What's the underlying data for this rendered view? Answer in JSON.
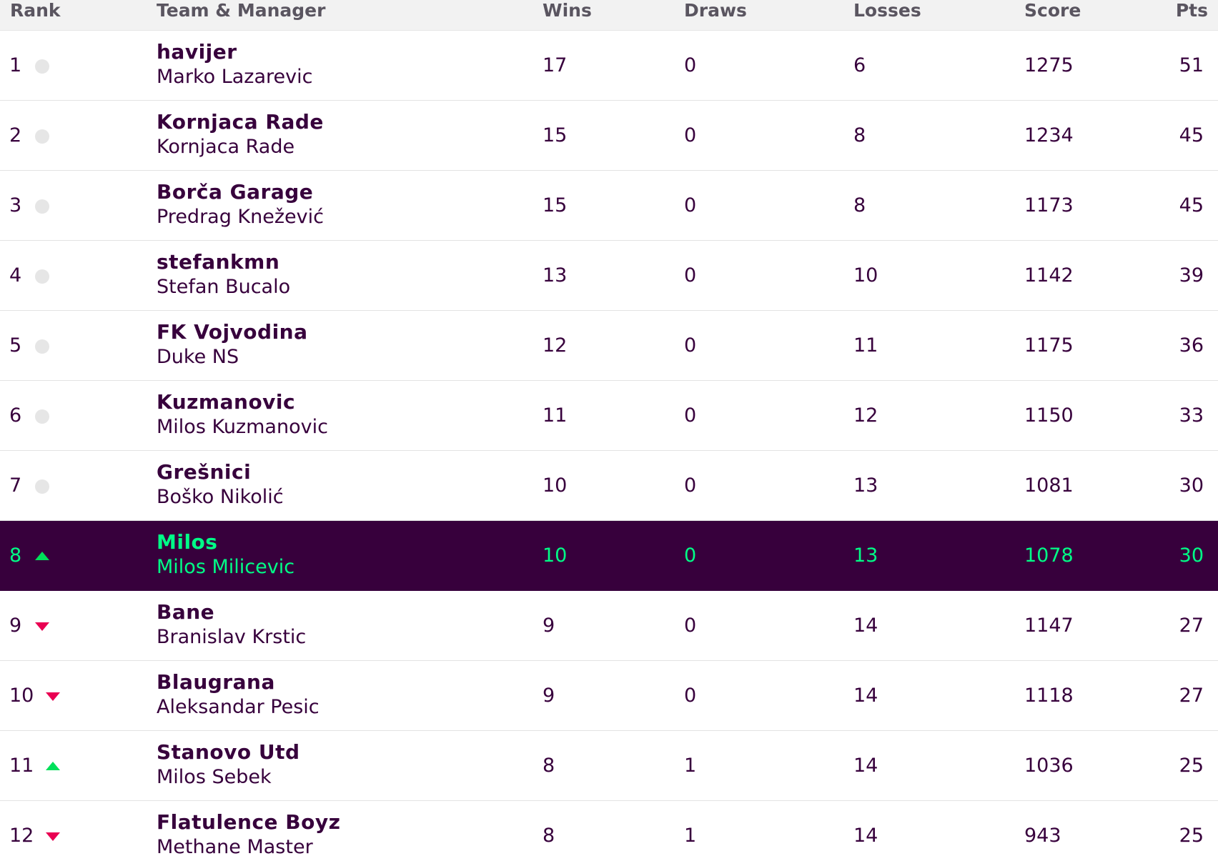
{
  "columns": {
    "rank": "Rank",
    "team_manager": "Team & Manager",
    "wins": "Wins",
    "draws": "Draws",
    "losses": "Losses",
    "score": "Score",
    "pts": "Pts"
  },
  "colors": {
    "text": "#37003c",
    "header_bg": "#f2f2f2",
    "header_text": "#5a5560",
    "highlight_bg": "#37003c",
    "highlight_text": "#00ff87",
    "up": "#00e05a",
    "down": "#e90052",
    "same": "#e6e6e6"
  },
  "rows": [
    {
      "rank": "1",
      "movement": "same",
      "team": "havijer",
      "manager": "Marko Lazarevic",
      "wins": "17",
      "draws": "0",
      "losses": "6",
      "score": "1275",
      "pts": "51",
      "highlight": false
    },
    {
      "rank": "2",
      "movement": "same",
      "team": "Kornjaca Rade",
      "manager": "Kornjaca Rade",
      "wins": "15",
      "draws": "0",
      "losses": "8",
      "score": "1234",
      "pts": "45",
      "highlight": false
    },
    {
      "rank": "3",
      "movement": "same",
      "team": "Borča Garage",
      "manager": "Predrag Knežević",
      "wins": "15",
      "draws": "0",
      "losses": "8",
      "score": "1173",
      "pts": "45",
      "highlight": false
    },
    {
      "rank": "4",
      "movement": "same",
      "team": "stefankmn",
      "manager": "Stefan Bucalo",
      "wins": "13",
      "draws": "0",
      "losses": "10",
      "score": "1142",
      "pts": "39",
      "highlight": false
    },
    {
      "rank": "5",
      "movement": "same",
      "team": "FK Vojvodina",
      "manager": "Duke NS",
      "wins": "12",
      "draws": "0",
      "losses": "11",
      "score": "1175",
      "pts": "36",
      "highlight": false
    },
    {
      "rank": "6",
      "movement": "same",
      "team": "Kuzmanovic",
      "manager": "Milos Kuzmanovic",
      "wins": "11",
      "draws": "0",
      "losses": "12",
      "score": "1150",
      "pts": "33",
      "highlight": false
    },
    {
      "rank": "7",
      "movement": "same",
      "team": "Grešnici",
      "manager": "Boško Nikolić",
      "wins": "10",
      "draws": "0",
      "losses": "13",
      "score": "1081",
      "pts": "30",
      "highlight": false
    },
    {
      "rank": "8",
      "movement": "up",
      "team": "Milos",
      "manager": "Milos Milicevic",
      "wins": "10",
      "draws": "0",
      "losses": "13",
      "score": "1078",
      "pts": "30",
      "highlight": true
    },
    {
      "rank": "9",
      "movement": "down",
      "team": "Bane",
      "manager": "Branislav Krstic",
      "wins": "9",
      "draws": "0",
      "losses": "14",
      "score": "1147",
      "pts": "27",
      "highlight": false
    },
    {
      "rank": "10",
      "movement": "down",
      "team": "Blaugrana",
      "manager": "Aleksandar Pesic",
      "wins": "9",
      "draws": "0",
      "losses": "14",
      "score": "1118",
      "pts": "27",
      "highlight": false
    },
    {
      "rank": "11",
      "movement": "up",
      "team": "Stanovo Utd",
      "manager": "Milos Sebek",
      "wins": "8",
      "draws": "1",
      "losses": "14",
      "score": "1036",
      "pts": "25",
      "highlight": false
    },
    {
      "rank": "12",
      "movement": "down",
      "team": "Flatulence Boyz",
      "manager": "Methane Master",
      "wins": "8",
      "draws": "1",
      "losses": "14",
      "score": "943",
      "pts": "25",
      "highlight": false
    }
  ]
}
